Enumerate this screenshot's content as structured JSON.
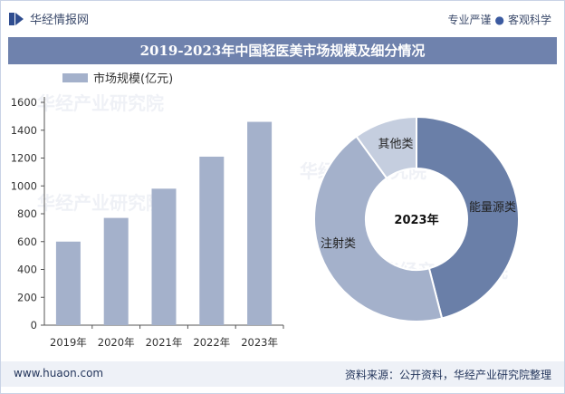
{
  "header": {
    "brand": "华经情报网",
    "slogan_left": "专业严谨",
    "slogan_right": "客观科学",
    "logo_icon": "huajing-logo-icon"
  },
  "title": "2019-2023年中国轻医美市场规模及细分情况",
  "watermark": "华经产业研究院",
  "colors": {
    "bar": "#a4b1cb",
    "title_bg": "#6f82ad",
    "slice_energy": "#6a7fa8",
    "slice_injection": "#a4b1cb",
    "slice_other": "#c5cedf"
  },
  "chart_data": [
    {
      "type": "bar",
      "title": "",
      "legend": [
        "市场规模(亿元)"
      ],
      "categories": [
        "2019年",
        "2020年",
        "2021年",
        "2022年",
        "2023年"
      ],
      "values": [
        600,
        770,
        980,
        1210,
        1460
      ],
      "ylim": [
        0,
        1600
      ],
      "yticks": [
        0,
        200,
        400,
        600,
        800,
        1000,
        1200,
        1400,
        1600
      ],
      "xlabel": "",
      "ylabel": "",
      "grid": false
    },
    {
      "type": "pie",
      "subtype": "donut",
      "center_label": "2023年",
      "slices": [
        {
          "label": "能量源类",
          "value": 46
        },
        {
          "label": "注射类",
          "value": 44
        },
        {
          "label": "其他类",
          "value": 10
        }
      ]
    }
  ],
  "footer": {
    "site": "www.huaon.com",
    "source": "资料来源：公开资料，华经产业研究院整理"
  }
}
